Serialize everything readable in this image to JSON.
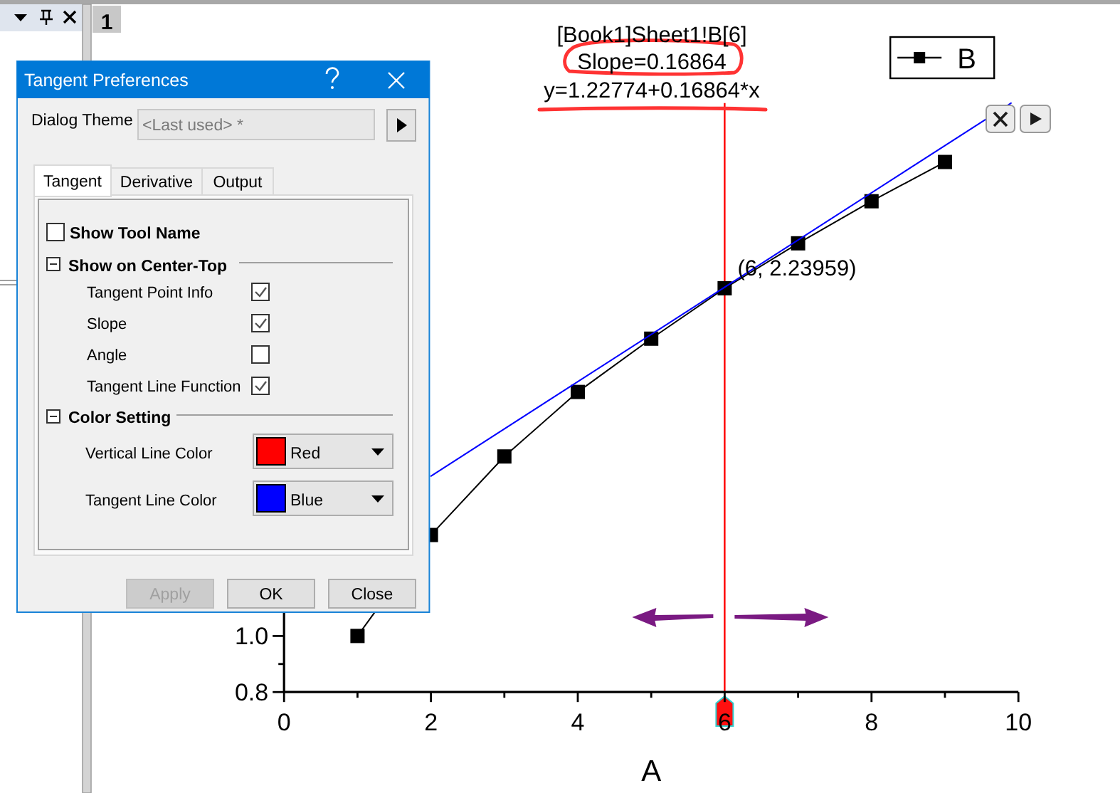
{
  "chart_data": {
    "type": "line",
    "annotations": [
      "[Book1]Sheet1!B[6]",
      "Slope=0.16864",
      "y=1.22774+0.16864*x",
      {
        "text": "(6, 2.23959)",
        "x": 6,
        "y": 2.23959
      },
      "1",
      "Tangent Preferences",
      "Dialog Theme",
      "<Last used> *",
      "Tangent",
      "Derivative",
      "Output",
      "Show Tool Name",
      "Show on Center-Top",
      "Tangent Point Info",
      "Slope",
      "Angle",
      "Tangent Line Function",
      "Color Setting",
      "Vertical Line Color",
      "Red",
      "Tangent Line Color",
      "Blue",
      "Apply",
      "OK",
      "Close"
    ],
    "xlabel": "A",
    "x": [
      1,
      2,
      3,
      4,
      5,
      6,
      7,
      8,
      9
    ],
    "series": [
      {
        "name": "B",
        "color": "#000000",
        "values": [
          1.0,
          1.36,
          1.64,
          1.87,
          2.06,
          2.23959,
          2.4,
          2.55,
          2.69
        ]
      },
      {
        "type": "line",
        "color": "#0000ff",
        "x": [
          2,
          9.9
        ],
        "values": [
          1.57,
          2.9
        ],
        "marker": "none"
      }
    ],
    "xlim": [
      0,
      10
    ],
    "xticks": [
      0,
      {
        "value": 1,
        "label": null
      },
      2,
      {
        "value": 3,
        "label": null
      },
      4,
      {
        "value": 5,
        "label": null
      },
      6,
      {
        "value": 7,
        "label": null
      },
      8,
      {
        "value": 9,
        "label": null
      },
      10
    ],
    "ylim": [
      0.8,
      2.9
    ],
    "yticks": [
      0.8,
      {
        "value": 0.9,
        "label": null
      },
      {
        "value": 1,
        "label": "1.0"
      }
    ],
    "ref_lines": [
      {
        "axis": "x",
        "value": 6,
        "color": "#ff0000"
      }
    ],
    "legend": "top right",
    "marker": "square",
    "line_style": "solid"
  }
}
